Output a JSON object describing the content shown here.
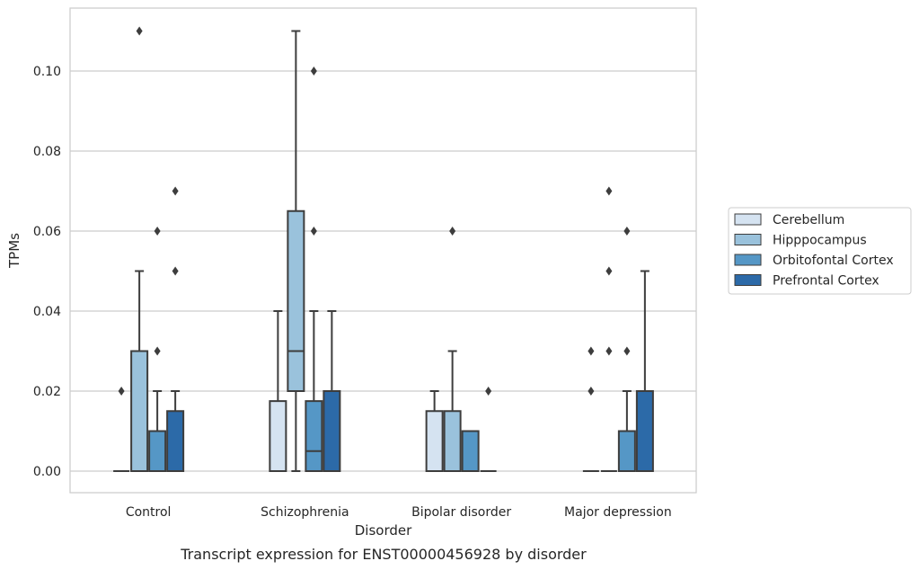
{
  "chart_data": {
    "type": "boxplot",
    "caption": "Transcript expression for ENST00000456928 by disorder",
    "xlabel": "Disorder",
    "ylabel": "TPMs",
    "ylim": [
      -0.0055,
      0.116
    ],
    "yticks": [
      0.0,
      0.02,
      0.04,
      0.06,
      0.08,
      0.1
    ],
    "ytick_labels": [
      "0.00",
      "0.02",
      "0.04",
      "0.06",
      "0.08",
      "0.10"
    ],
    "grid": "horizontal",
    "legend_position": "right",
    "categories": [
      "Control",
      "Schizophrenia",
      "Bipolar disorder",
      "Major depression"
    ],
    "series": [
      {
        "name": "Cerebellum",
        "color": "#d5e3f1",
        "boxes": [
          {
            "whisker_low": 0.0,
            "q1": 0.0,
            "median": 0.0,
            "q3": 0.0,
            "whisker_high": 0.0,
            "outliers": [
              0.02
            ]
          },
          {
            "whisker_low": 0.0,
            "q1": 0.0,
            "median": 0.0,
            "q3": 0.0175,
            "whisker_high": 0.04,
            "outliers": []
          },
          {
            "whisker_low": 0.0,
            "q1": 0.0,
            "median": 0.0,
            "q3": 0.015,
            "whisker_high": 0.02,
            "outliers": []
          },
          {
            "whisker_low": 0.0,
            "q1": 0.0,
            "median": 0.0,
            "q3": 0.0,
            "whisker_high": 0.0,
            "outliers": [
              0.02,
              0.03
            ]
          }
        ]
      },
      {
        "name": "Hipppocampus",
        "color": "#9ac2dc",
        "boxes": [
          {
            "whisker_low": 0.0,
            "q1": 0.0,
            "median": 0.0,
            "q3": 0.03,
            "whisker_high": 0.05,
            "outliers": [
              0.11
            ]
          },
          {
            "whisker_low": 0.0,
            "q1": 0.02,
            "median": 0.03,
            "q3": 0.065,
            "whisker_high": 0.11,
            "outliers": []
          },
          {
            "whisker_low": 0.0,
            "q1": 0.0,
            "median": 0.0,
            "q3": 0.015,
            "whisker_high": 0.03,
            "outliers": [
              0.06
            ]
          },
          {
            "whisker_low": 0.0,
            "q1": 0.0,
            "median": 0.0,
            "q3": 0.0,
            "whisker_high": 0.0,
            "outliers": [
              0.03,
              0.05,
              0.07
            ]
          }
        ]
      },
      {
        "name": "Orbitofontal Cortex",
        "color": "#5597c6",
        "boxes": [
          {
            "whisker_low": 0.0,
            "q1": 0.0,
            "median": 0.0,
            "q3": 0.01,
            "whisker_high": 0.02,
            "outliers": [
              0.03,
              0.06
            ]
          },
          {
            "whisker_low": 0.0,
            "q1": 0.0,
            "median": 0.005,
            "q3": 0.0175,
            "whisker_high": 0.04,
            "outliers": [
              0.06,
              0.1
            ]
          },
          {
            "whisker_low": 0.0,
            "q1": 0.0,
            "median": 0.0,
            "q3": 0.01,
            "whisker_high": 0.01,
            "outliers": []
          },
          {
            "whisker_low": 0.0,
            "q1": 0.0,
            "median": 0.0,
            "q3": 0.01,
            "whisker_high": 0.02,
            "outliers": [
              0.03,
              0.06
            ]
          }
        ]
      },
      {
        "name": "Prefrontal Cortex",
        "color": "#2c6aa8",
        "boxes": [
          {
            "whisker_low": 0.0,
            "q1": 0.0,
            "median": 0.0,
            "q3": 0.015,
            "whisker_high": 0.02,
            "outliers": [
              0.05,
              0.07
            ]
          },
          {
            "whisker_low": 0.0,
            "q1": 0.0,
            "median": 0.0,
            "q3": 0.02,
            "whisker_high": 0.04,
            "outliers": []
          },
          {
            "whisker_low": 0.0,
            "q1": 0.0,
            "median": 0.0,
            "q3": 0.0,
            "whisker_high": 0.0,
            "outliers": [
              0.02
            ]
          },
          {
            "whisker_low": 0.0,
            "q1": 0.0,
            "median": 0.0,
            "q3": 0.02,
            "whisker_high": 0.05,
            "outliers": []
          }
        ]
      }
    ]
  }
}
